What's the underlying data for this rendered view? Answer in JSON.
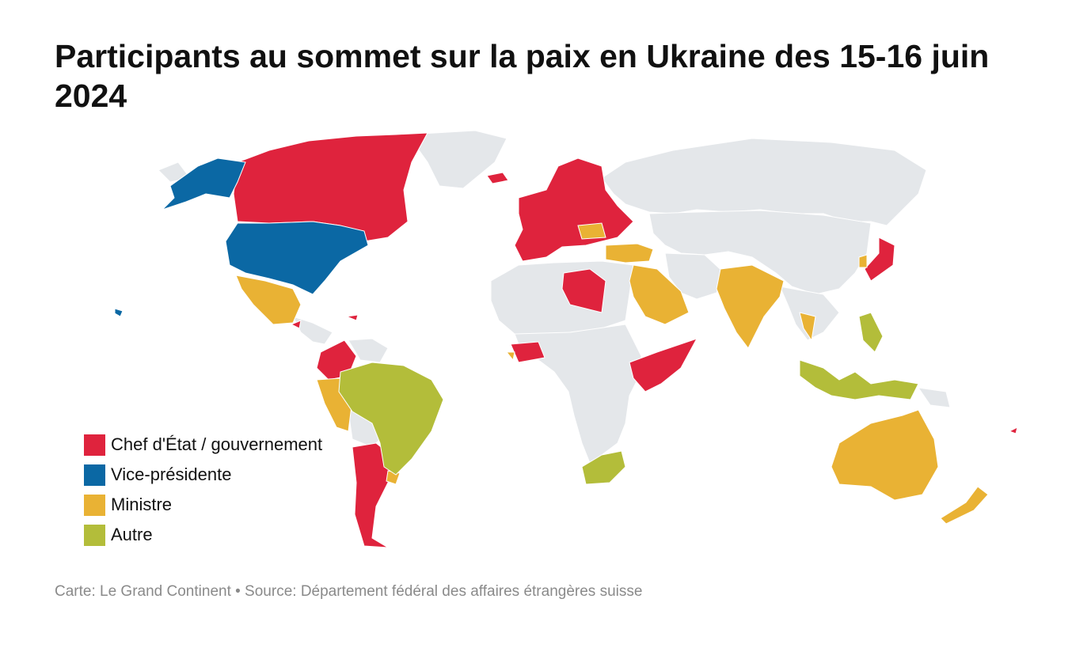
{
  "title": "Participants au sommet sur la paix en Ukraine des 15-16 juin 2024",
  "legend": [
    {
      "key": "chef",
      "label": "Chef d'État / gouvernement",
      "color": "#df233d"
    },
    {
      "key": "vp",
      "label": "Vice-présidente",
      "color": "#0b68a4"
    },
    {
      "key": "ministre",
      "label": "Ministre",
      "color": "#e9b234"
    },
    {
      "key": "autre",
      "label": "Autre",
      "color": "#b3bd3a"
    }
  ],
  "colors": {
    "nonparticipant": "#e4e7ea",
    "border": "#ffffff"
  },
  "footer": "Carte: Le Grand Continent • Source: Département fédéral des affaires étrangères suisse"
}
